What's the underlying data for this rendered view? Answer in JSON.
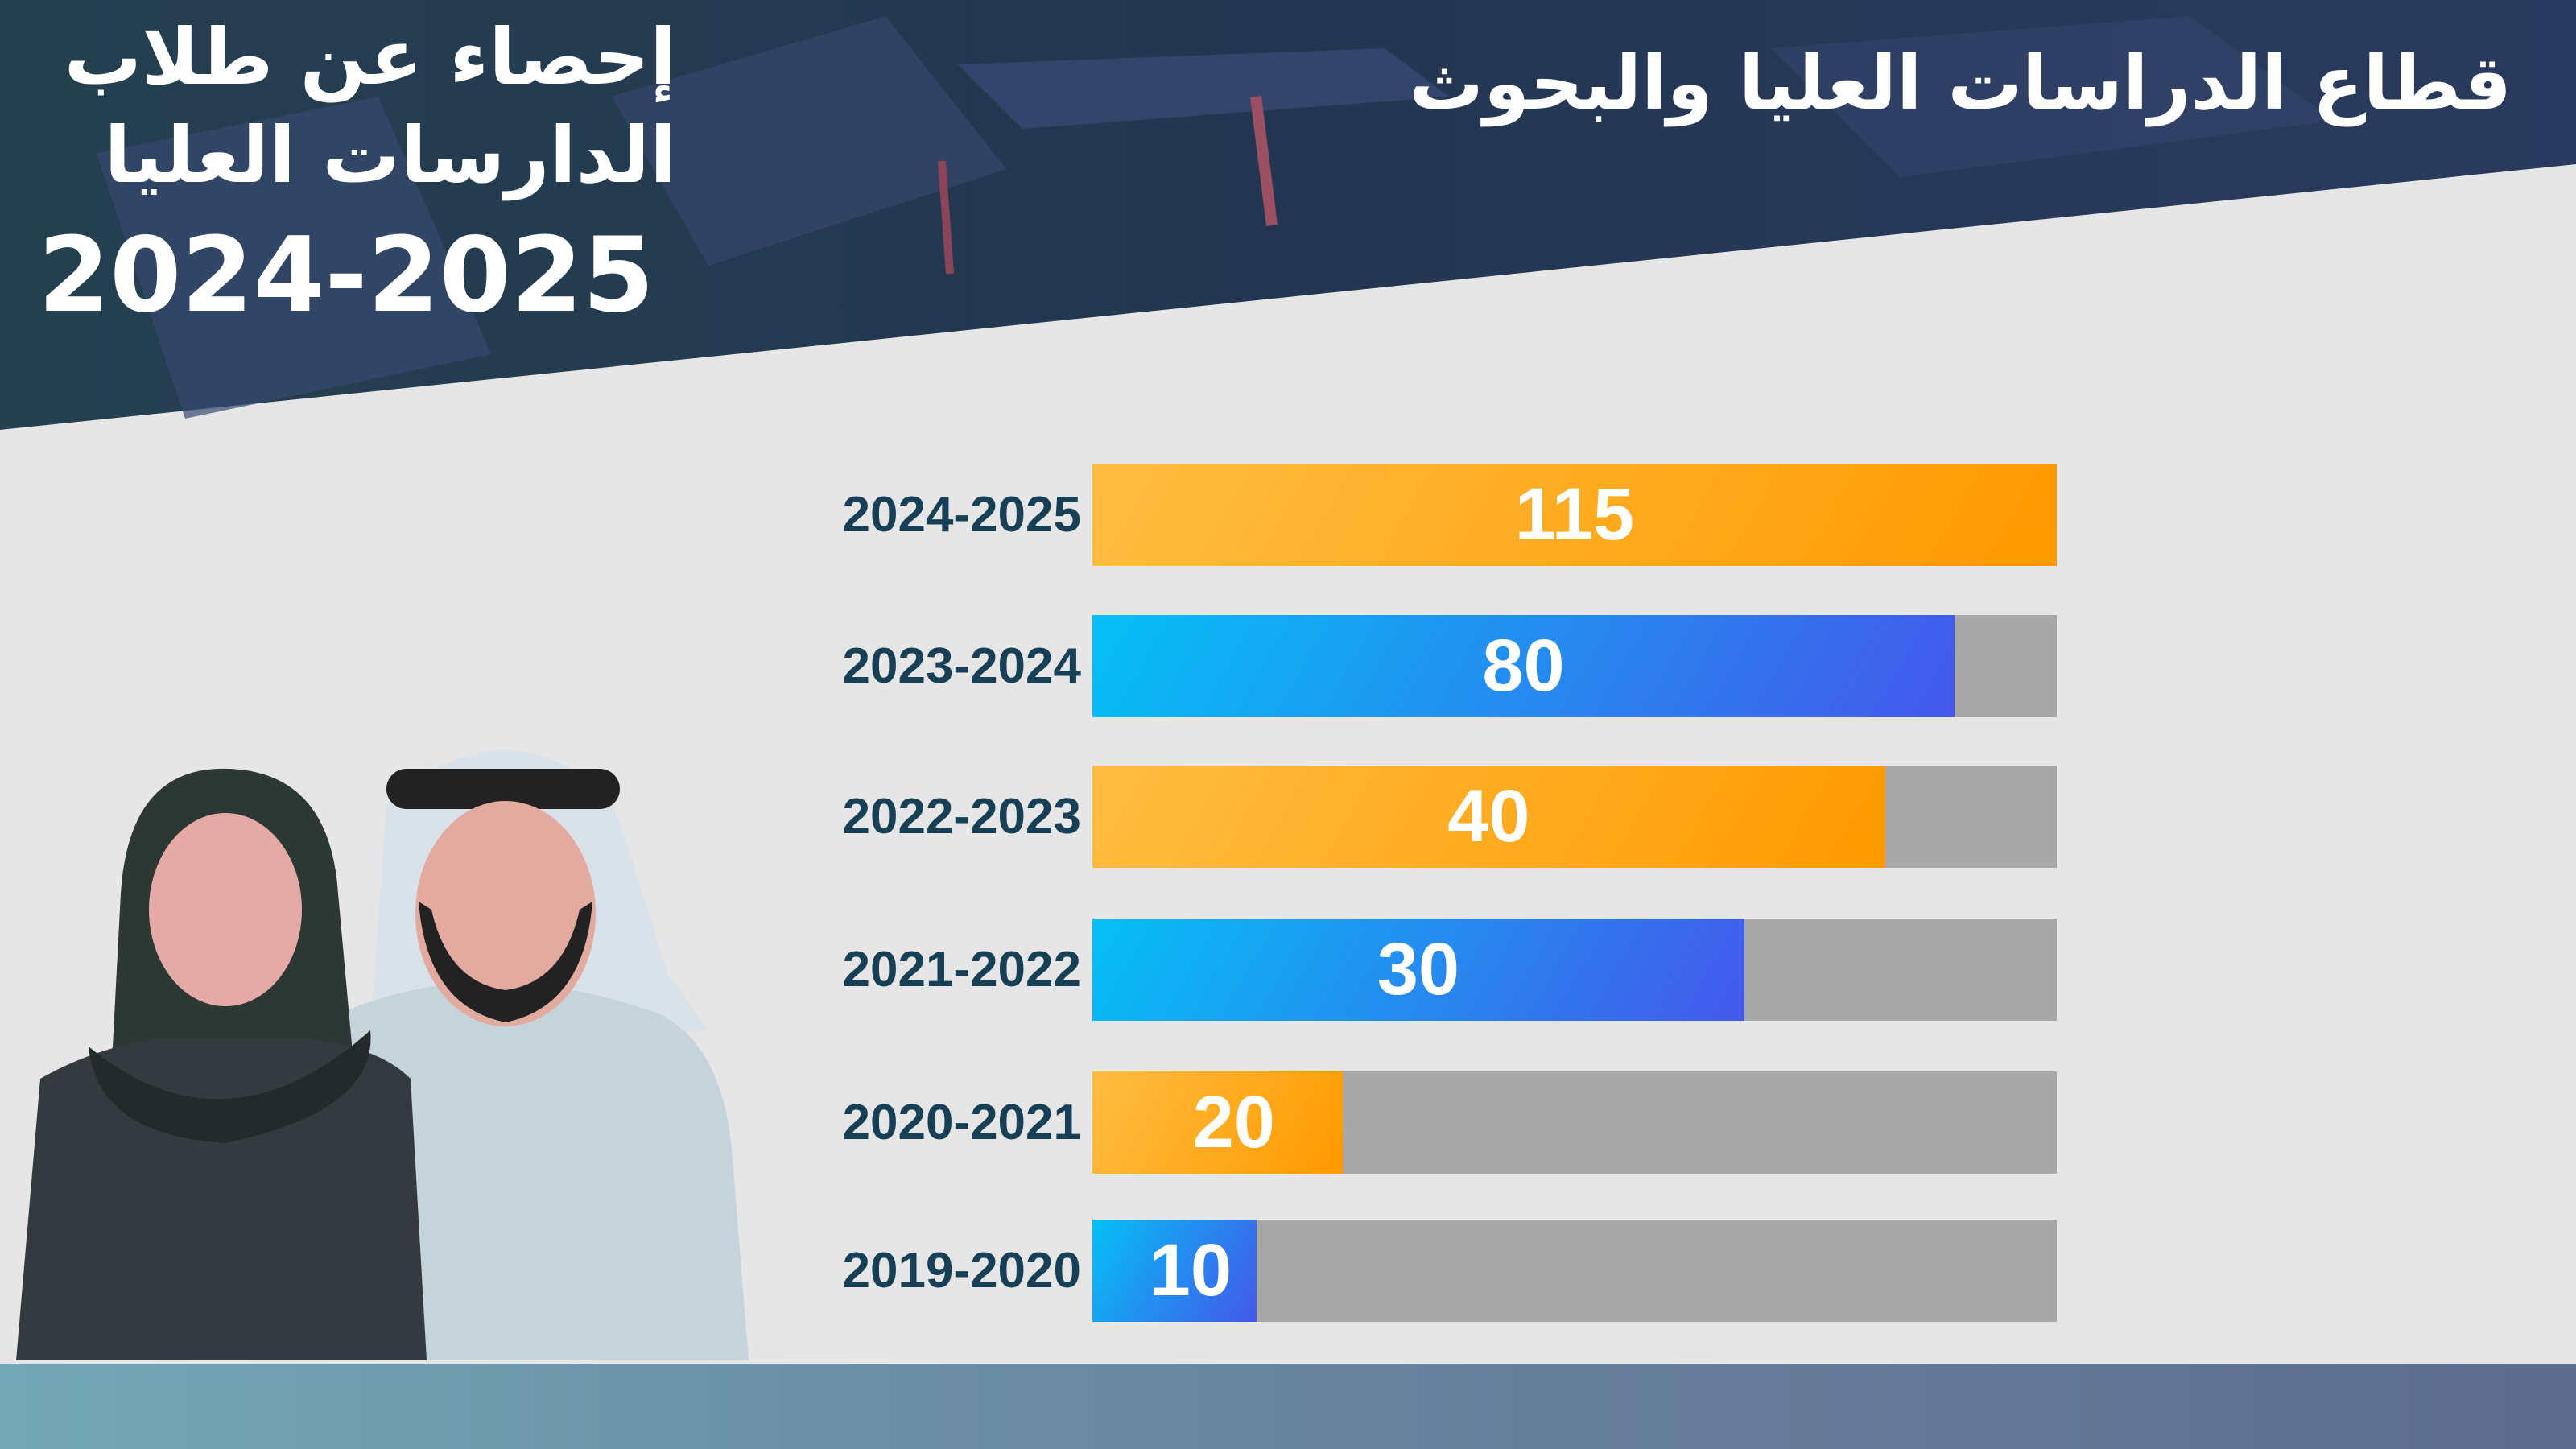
{
  "header": {
    "department_title": "قطاع الدراسات العليا والبحوث",
    "stats_title_line1": "إحصاء عن طلاب",
    "stats_title_line2": "الدارسات العليا",
    "year": "2024-2025"
  },
  "colors": {
    "orange": "#ff9a00",
    "blue": "#4458ea",
    "track": "#a8a8a8",
    "label": "#173f56"
  },
  "chart_data": {
    "type": "bar",
    "orientation": "horizontal",
    "categories": [
      "2024-2025",
      "2023-2024",
      "2022-2023",
      "2021-2022",
      "2020-2021",
      "2019-2020"
    ],
    "values": [
      115,
      80,
      40,
      30,
      20,
      10
    ],
    "fill_fraction": [
      1.0,
      0.894,
      0.822,
      0.676,
      0.26,
      0.17
    ],
    "bar_colors": [
      "orange",
      "blue",
      "orange",
      "blue",
      "orange",
      "blue"
    ],
    "title": "",
    "xlabel": "",
    "ylabel": "",
    "grid": false
  }
}
